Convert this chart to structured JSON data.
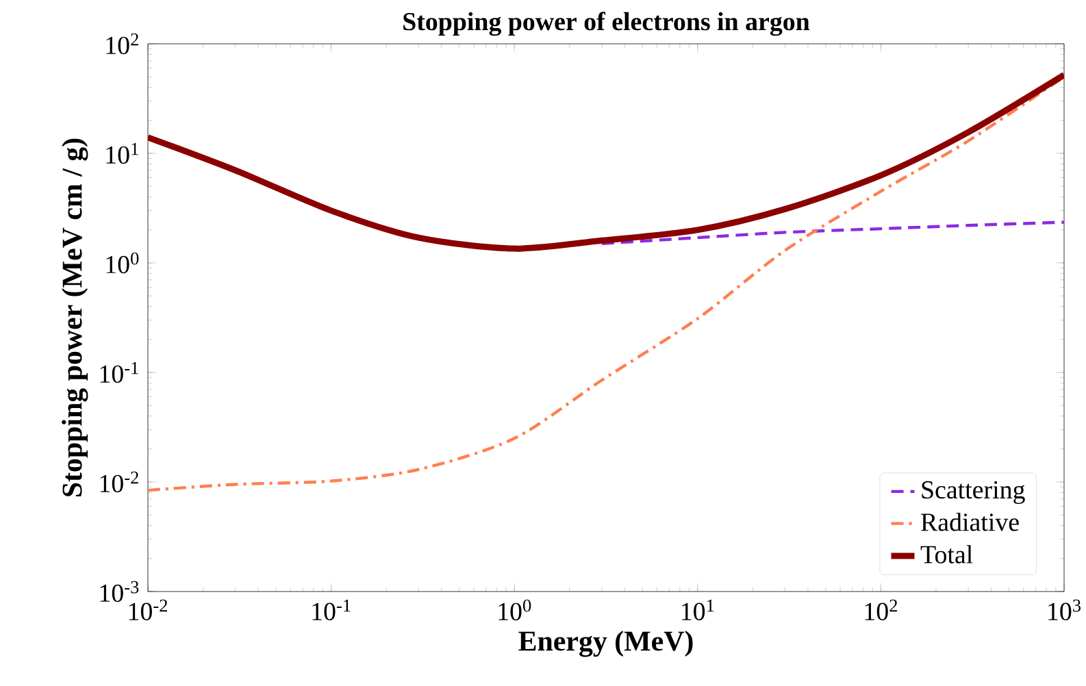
{
  "chart_data": {
    "type": "line",
    "title": "Stopping power of electrons in argon",
    "xlabel": "Energy (MeV)",
    "ylabel": "Stopping power (MeV cm / g)",
    "log": "xy",
    "x": [
      0.01,
      0.03,
      0.1,
      0.3,
      1,
      3,
      10,
      30,
      100,
      300,
      1000
    ],
    "series": [
      {
        "name": "Scattering",
        "color": "#8a2be2",
        "line_style": "dashed",
        "values": [
          null,
          null,
          null,
          null,
          null,
          1.5,
          1.7,
          1.9,
          2.05,
          2.2,
          2.35
        ]
      },
      {
        "name": "Radiative",
        "color": "#ff7f50",
        "line_style": "dashdot",
        "values": [
          0.0084,
          0.0095,
          0.0102,
          0.013,
          0.025,
          0.085,
          0.31,
          1.3,
          4.5,
          13,
          50
        ]
      },
      {
        "name": "Total",
        "color": "#8b0000",
        "line_style": "solid",
        "values": [
          14,
          7,
          3.0,
          1.7,
          1.35,
          1.6,
          2.0,
          3.1,
          6.3,
          15.6,
          52
        ]
      }
    ],
    "xlim": [
      0.01,
      1000
    ],
    "ylim": [
      0.001,
      100
    ],
    "xticks": [
      {
        "value": 0.01,
        "label": "10$^{-2}$"
      },
      {
        "value": 0.1,
        "label": "10$^{-1}$"
      },
      {
        "value": 1,
        "label": "10$^{0}$"
      },
      {
        "value": 10,
        "label": "10$^{1}$"
      },
      {
        "value": 100,
        "label": "10$^{2}$"
      },
      {
        "value": 1000,
        "label": "10$^{3}$"
      }
    ],
    "yticks": [
      {
        "value": 0.001,
        "label": "10$^{-3}$"
      },
      {
        "value": 0.01,
        "label": "10$^{-2}$"
      },
      {
        "value": 0.1,
        "label": "10$^{-1}$"
      },
      {
        "value": 1,
        "label": "10$^{0}$"
      },
      {
        "value": 10,
        "label": "10$^{1}$"
      },
      {
        "value": 100,
        "label": "10$^{2}$"
      }
    ],
    "grid": false,
    "legend": "bottom right",
    "marker": "none"
  }
}
